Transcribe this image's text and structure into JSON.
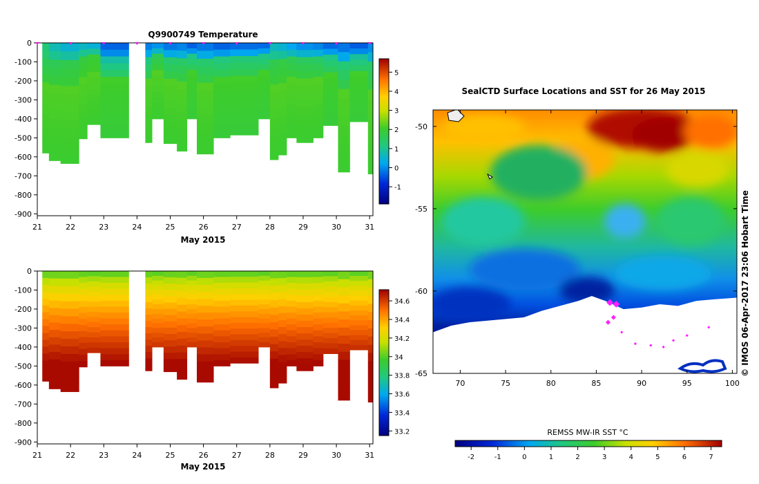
{
  "charts": {
    "temperature_title": "Q9900749  Temperature",
    "month_label": "May 2015",
    "map_title": "SealCTD Surface Locations and SST for 26 May 2015",
    "sst_label": "REMSS MW-IR SST °C",
    "credit": "©  IMOS 06-Apr-2017 23:06 Hobart Time"
  },
  "chart_data": [
    {
      "type": "heatmap",
      "title": "Q9900749  Temperature",
      "xlabel": "May 2015",
      "ylabel": "",
      "x_ticks": [
        21,
        22,
        23,
        24,
        25,
        26,
        27,
        28,
        29,
        30,
        31
      ],
      "y_ticks": [
        0,
        -100,
        -200,
        -300,
        -400,
        -500,
        -600,
        -700,
        -800,
        -900
      ],
      "xlim": [
        21,
        31.1
      ],
      "ylim": [
        -910,
        0
      ],
      "colorbar_ticks": [
        -1,
        0,
        1,
        2,
        3,
        4,
        5
      ],
      "colorbar_range": [
        -1.9,
        5.7
      ],
      "profile_markers": [
        21.0,
        22.0,
        23.0,
        24.0,
        25.0,
        26.0,
        27.0,
        28.0,
        29.0,
        30.0,
        31.0
      ],
      "profiles": [
        {
          "x0": 21.15,
          "x1": 21.35,
          "depth": 580,
          "surf": 1.2,
          "mix": 1.5,
          "deep": 2.2
        },
        {
          "x0": 21.35,
          "x1": 21.7,
          "depth": 620,
          "surf": 0.6,
          "mix": 1.5,
          "deep": 2.2
        },
        {
          "x0": 21.7,
          "x1": 22.25,
          "depth": 635,
          "surf": 0.3,
          "mix": 1.6,
          "deep": 2.2
        },
        {
          "x0": 22.25,
          "x1": 22.5,
          "depth": 505,
          "surf": 0.4,
          "mix": 1.8,
          "deep": 2.2
        },
        {
          "x0": 22.5,
          "x1": 22.9,
          "depth": 430,
          "surf": 0.2,
          "mix": 1.9,
          "deep": 2.2
        },
        {
          "x0": 22.9,
          "x1": 23.75,
          "depth": 500,
          "surf": -0.5,
          "mix": 0.6,
          "deep": 2.1
        },
        {
          "x0": 24.25,
          "x1": 24.45,
          "depth": 525,
          "surf": -0.3,
          "mix": 1.0,
          "deep": 2.2
        },
        {
          "x0": 24.45,
          "x1": 24.8,
          "depth": 400,
          "surf": -0.2,
          "mix": 1.5,
          "deep": 2.2
        },
        {
          "x0": 24.8,
          "x1": 25.2,
          "depth": 530,
          "surf": -0.4,
          "mix": 1.2,
          "deep": 2.2
        },
        {
          "x0": 25.2,
          "x1": 25.5,
          "depth": 570,
          "surf": -0.3,
          "mix": 1.3,
          "deep": 2.2
        },
        {
          "x0": 25.5,
          "x1": 25.8,
          "depth": 400,
          "surf": -0.6,
          "mix": 0.9,
          "deep": 2.1
        },
        {
          "x0": 25.8,
          "x1": 26.3,
          "depth": 585,
          "surf": -0.4,
          "mix": 1.2,
          "deep": 2.2
        },
        {
          "x0": 26.3,
          "x1": 26.8,
          "depth": 500,
          "surf": -0.6,
          "mix": 1.0,
          "deep": 2.1
        },
        {
          "x0": 26.8,
          "x1": 27.65,
          "depth": 485,
          "surf": -0.5,
          "mix": 1.1,
          "deep": 2.1
        },
        {
          "x0": 27.65,
          "x1": 28.0,
          "depth": 400,
          "surf": -0.5,
          "mix": 0.9,
          "deep": 2.1
        },
        {
          "x0": 28.0,
          "x1": 28.25,
          "depth": 615,
          "surf": 0.5,
          "mix": 1.6,
          "deep": 2.2
        },
        {
          "x0": 28.25,
          "x1": 28.5,
          "depth": 590,
          "surf": 0.3,
          "mix": 1.7,
          "deep": 2.2
        },
        {
          "x0": 28.5,
          "x1": 28.8,
          "depth": 500,
          "surf": 0.0,
          "mix": 1.5,
          "deep": 2.2
        },
        {
          "x0": 28.8,
          "x1": 29.3,
          "depth": 525,
          "surf": -0.2,
          "mix": 1.4,
          "deep": 2.2
        },
        {
          "x0": 29.3,
          "x1": 29.6,
          "depth": 500,
          "surf": -0.3,
          "mix": 1.3,
          "deep": 2.2
        },
        {
          "x0": 29.6,
          "x1": 30.05,
          "depth": 435,
          "surf": -0.5,
          "mix": 0.9,
          "deep": 2.1
        },
        {
          "x0": 30.05,
          "x1": 30.4,
          "depth": 680,
          "surf": -0.4,
          "mix": 1.1,
          "deep": 2.2
        },
        {
          "x0": 30.4,
          "x1": 30.95,
          "depth": 415,
          "surf": -0.6,
          "mix": 0.7,
          "deep": 2.1
        },
        {
          "x0": 30.95,
          "x1": 31.1,
          "depth": 690,
          "surf": -0.2,
          "mix": 1.3,
          "deep": 2.2
        }
      ]
    },
    {
      "type": "heatmap",
      "title": "",
      "xlabel": "May 2015",
      "ylabel": "",
      "x_ticks": [
        21,
        22,
        23,
        24,
        25,
        26,
        27,
        28,
        29,
        30,
        31
      ],
      "y_ticks": [
        0,
        -100,
        -200,
        -300,
        -400,
        -500,
        -600,
        -700,
        -800,
        -900
      ],
      "xlim": [
        21,
        31.1
      ],
      "ylim": [
        -910,
        0
      ],
      "colorbar_ticks": [
        33.2,
        33.4,
        33.6,
        33.8,
        34,
        34.2,
        34.4,
        34.6
      ],
      "colorbar_range": [
        33.15,
        34.72
      ],
      "surface_value": 33.9,
      "deep_value": 34.7
    },
    {
      "type": "heatmap",
      "title": "SealCTD Surface Locations and SST for 26 May 2015",
      "xlabel": "",
      "ylabel": "",
      "x_ticks": [
        70,
        75,
        80,
        85,
        90,
        95,
        100
      ],
      "y_ticks": [
        -50,
        -55,
        -60,
        -65
      ],
      "xlim": [
        67,
        100.5
      ],
      "ylim": [
        -65,
        -49
      ],
      "colorbar_label": "REMSS MW-IR SST °C",
      "colorbar_ticks": [
        -2,
        -1,
        0,
        1,
        2,
        3,
        4,
        5,
        6,
        7
      ],
      "colorbar_range": [
        -2.6,
        7.4
      ],
      "ice_edge": [
        [
          67,
          -62.5
        ],
        [
          69,
          -62.1
        ],
        [
          71,
          -61.9
        ],
        [
          73,
          -61.8
        ],
        [
          75,
          -61.7
        ],
        [
          77,
          -61.6
        ],
        [
          79,
          -61.2
        ],
        [
          81,
          -60.9
        ],
        [
          83,
          -60.6
        ],
        [
          84.5,
          -60.3
        ],
        [
          86,
          -60.6
        ],
        [
          88,
          -61.1
        ],
        [
          90,
          -61.0
        ],
        [
          92,
          -60.8
        ],
        [
          94,
          -60.9
        ],
        [
          96,
          -60.6
        ],
        [
          98,
          -60.5
        ],
        [
          100.5,
          -60.4
        ]
      ],
      "surface_locations": [
        [
          86.5,
          -60.7
        ],
        [
          87.2,
          -60.8
        ],
        [
          86.9,
          -61.6
        ],
        [
          86.3,
          -61.9
        ],
        [
          87.8,
          -62.5
        ],
        [
          89.3,
          -63.2
        ],
        [
          91.0,
          -63.3
        ],
        [
          92.4,
          -63.4
        ],
        [
          93.5,
          -63.0
        ],
        [
          95.0,
          -62.7
        ],
        [
          97.4,
          -62.2
        ]
      ]
    }
  ]
}
